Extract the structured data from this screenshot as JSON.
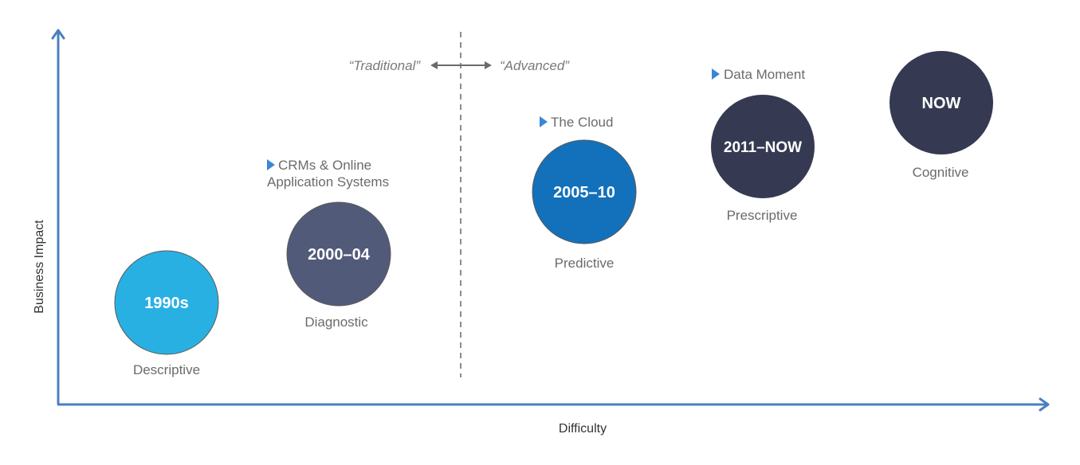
{
  "axes": {
    "x_label": "Difficulty",
    "y_label": "Business Impact",
    "color": "#4a7fc1"
  },
  "zones": {
    "left_label": "“Traditional”",
    "right_label": "“Advanced”"
  },
  "eras": [
    {
      "period": "1990s",
      "stage": "Descriptive",
      "milestone": [],
      "color": "#29b0e3"
    },
    {
      "period": "2000–04",
      "stage": "Diagnostic",
      "milestone": [
        "CRMs & Online",
        "Application Systems"
      ],
      "color": "#525a7a"
    },
    {
      "period": "2005–10",
      "stage": "Predictive",
      "milestone": [
        "The Cloud"
      ],
      "color": "#1370ba"
    },
    {
      "period": "2011–NOW",
      "stage": "Prescriptive",
      "milestone": [
        "Data Moment"
      ],
      "color": "#353a52"
    },
    {
      "period": "NOW",
      "stage": "Cognitive",
      "milestone": [],
      "color": "#353a52"
    }
  ]
}
